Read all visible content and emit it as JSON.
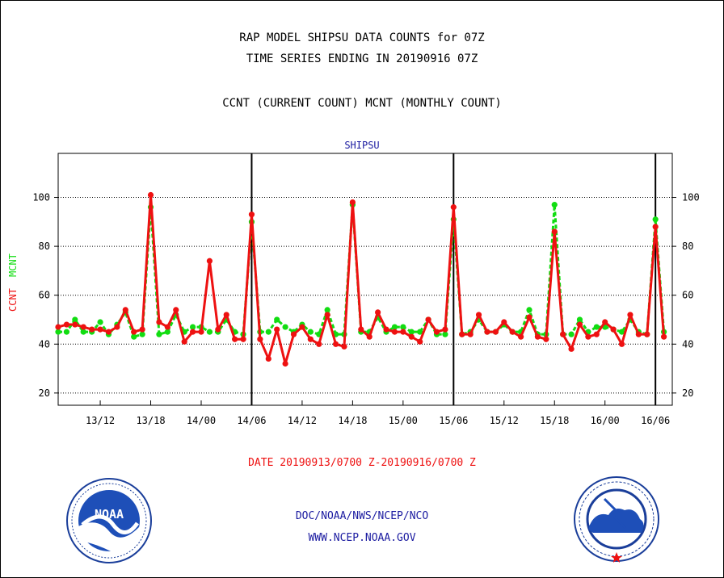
{
  "header": {
    "title_line1": "RAP MODEL SHIPSU DATA COUNTS for 07Z",
    "title_line2": "TIME SERIES ENDING IN 20190916 07Z",
    "subtitle": "CCNT (CURRENT COUNT) MCNT (MONTHLY COUNT)"
  },
  "footer": {
    "date_range": "DATE 20190913/0700 Z-20190916/0700 Z",
    "org_line": "DOC/NOAA/NWS/NCEP/NCO",
    "url_line": "WWW.NCEP.NOAA.GOV"
  },
  "logos": {
    "noaa_text": "NOAA",
    "nws_text": "NATIONAL WEATHER SERVICE"
  },
  "colors": {
    "ccnt": "#ee1111",
    "mcnt": "#11dd11",
    "text_blue": "#1a1aa0",
    "grid": "#000000"
  },
  "chart_data": {
    "type": "line",
    "title": "SHIPSU",
    "ylabel_ccnt": "CCNT",
    "ylabel_mcnt": "MCNT",
    "ylim": [
      15,
      118
    ],
    "yticks": [
      20,
      40,
      60,
      80,
      100
    ],
    "xlim": [
      0,
      73
    ],
    "xtick_positions": [
      5,
      11,
      17,
      23,
      29,
      35,
      41,
      47,
      53,
      59,
      65,
      71
    ],
    "xtick_labels": [
      "13/12",
      "13/18",
      "14/00",
      "14/06",
      "14/12",
      "14/18",
      "15/00",
      "15/06",
      "15/12",
      "15/18",
      "16/00",
      "16/06"
    ],
    "day_boundaries": [
      23,
      47,
      71
    ],
    "grid": "horizontal dotted",
    "series": [
      {
        "name": "CCNT",
        "color": "#ee1111",
        "values": [
          47,
          48,
          48,
          47,
          46,
          46,
          45,
          47,
          54,
          45,
          46,
          101,
          49,
          47,
          54,
          41,
          45,
          45,
          74,
          46,
          52,
          42,
          42,
          93,
          42,
          34,
          46,
          32,
          44,
          47,
          42,
          40,
          52,
          40,
          39,
          98,
          46,
          43,
          53,
          46,
          45,
          45,
          43,
          41,
          50,
          45,
          46,
          96,
          44,
          44,
          52,
          45,
          45,
          49,
          45,
          43,
          51,
          43,
          42,
          86,
          44,
          38,
          48,
          43,
          44,
          49,
          46,
          40,
          52,
          44,
          44,
          88,
          43
        ]
      },
      {
        "name": "MCNT",
        "color": "#11dd11",
        "values": [
          45,
          45,
          50,
          45,
          45,
          49,
          44,
          48,
          53,
          43,
          44,
          96,
          44,
          45,
          52,
          45,
          47,
          47,
          45,
          45,
          50,
          45,
          44,
          90,
          45,
          45,
          50,
          47,
          45,
          48,
          45,
          44,
          54,
          44,
          44,
          97,
          45,
          45,
          51,
          45,
          47,
          47,
          45,
          45,
          50,
          44,
          44,
          91,
          44,
          45,
          50,
          45,
          45,
          48,
          45,
          45,
          54,
          44,
          44,
          97,
          44,
          44,
          50,
          45,
          47,
          47,
          46,
          45,
          50,
          45,
          44,
          91,
          45
        ]
      }
    ]
  }
}
